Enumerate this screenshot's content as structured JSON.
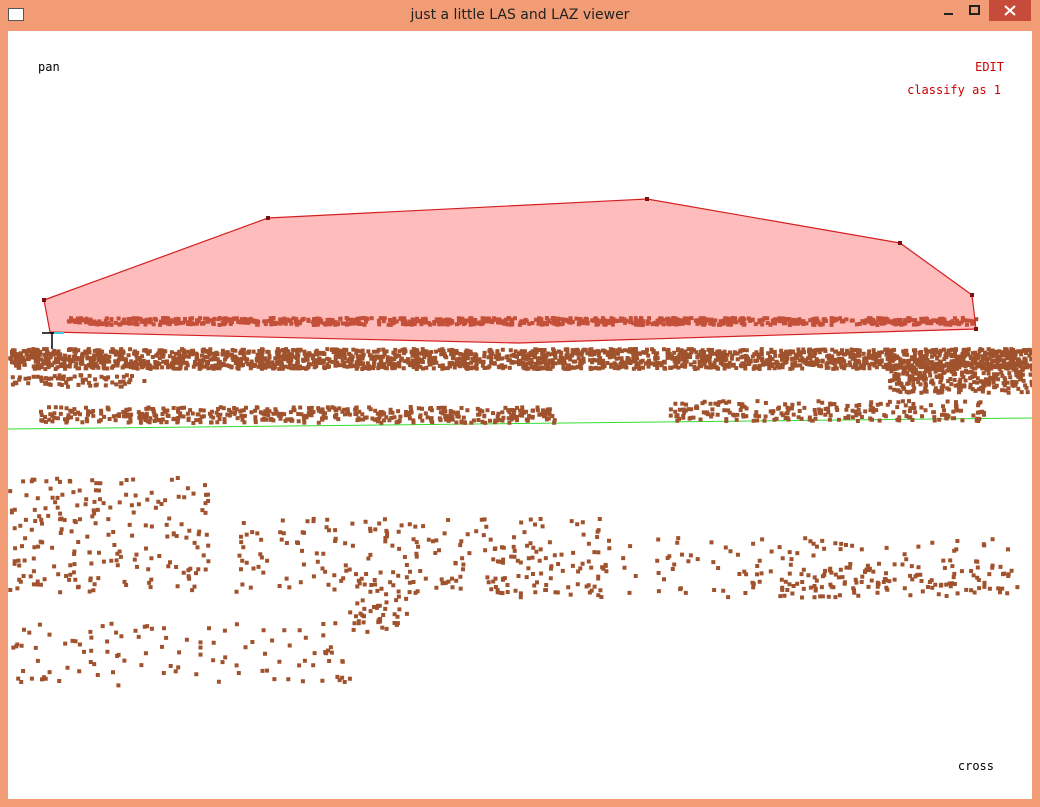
{
  "window": {
    "title": "just a little LAS and LAZ viewer"
  },
  "viewport": {
    "mode": "pan",
    "edit_label": "EDIT",
    "action": "classify as 1",
    "cursor": "cross"
  }
}
